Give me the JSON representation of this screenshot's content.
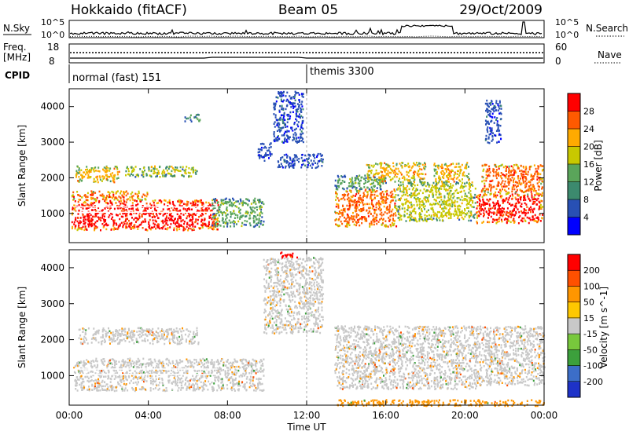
{
  "header": {
    "radar": "Hokkaido (fitACF)",
    "beam": "Beam 05",
    "date": "29/Oct/2009"
  },
  "panels_top": {
    "nsky_label": "N.Sky",
    "nsky_ticks": [
      "10^5",
      "10^0"
    ],
    "nsearch_label": "N.Search",
    "freq_label_1": "Freq.",
    "freq_label_2": "[MHz]",
    "freq_ticks": [
      "18",
      "8"
    ],
    "nave_label": "Nave",
    "nave_ticks": [
      "60",
      "0"
    ],
    "cpid_label": "CPID",
    "cpid_modes": [
      {
        "name": "normal (fast) 151",
        "start_hour": 0
      },
      {
        "name": "themis 3300",
        "start_hour": 12
      }
    ]
  },
  "chart_data": [
    {
      "type": "heatmap",
      "name": "Power",
      "xlabel": "",
      "ylabel": "Slant Range [km]",
      "xlim": [
        0,
        24
      ],
      "ylim": [
        180,
        4500
      ],
      "y_ticks": [
        "4000",
        "3000",
        "2000",
        "1000"
      ],
      "y_tick_values": [
        4000,
        3000,
        2000,
        1000
      ],
      "colorbar": {
        "label": "Power [dB]",
        "tick_labels": [
          "28",
          "24",
          "20",
          "16",
          "12",
          "8",
          "4"
        ],
        "colors": [
          "#0000ff",
          "#2850b4",
          "#3c8a6e",
          "#5aa55a",
          "#c8c800",
          "#ffaa00",
          "#ff5a00",
          "#ff0000"
        ]
      },
      "blobs": [
        {
          "t0": 0.1,
          "t1": 7.5,
          "r0": 550,
          "r1": 1400,
          "level": 7
        },
        {
          "t0": 0.1,
          "t1": 4.0,
          "r0": 1400,
          "r1": 1650,
          "level": 6
        },
        {
          "t0": 7.2,
          "t1": 9.8,
          "r0": 650,
          "r1": 1450,
          "level": 3
        },
        {
          "t0": 0.3,
          "t1": 2.5,
          "r0": 1900,
          "r1": 2350,
          "level": 5
        },
        {
          "t0": 2.8,
          "t1": 6.5,
          "r0": 2050,
          "r1": 2350,
          "level": 4
        },
        {
          "t0": 5.8,
          "t1": 6.6,
          "r0": 3600,
          "r1": 3800,
          "level": 3
        },
        {
          "t0": 9.5,
          "t1": 10.2,
          "r0": 2500,
          "r1": 3000,
          "level": 1
        },
        {
          "t0": 10.3,
          "t1": 11.8,
          "r0": 3000,
          "r1": 4450,
          "level": 1
        },
        {
          "t0": 10.5,
          "t1": 12.8,
          "r0": 2300,
          "r1": 2700,
          "level": 1
        },
        {
          "t0": 13.4,
          "t1": 16.5,
          "r0": 650,
          "r1": 1700,
          "level": 6
        },
        {
          "t0": 13.4,
          "t1": 16.0,
          "r0": 1700,
          "r1": 2100,
          "level": 3
        },
        {
          "t0": 15.0,
          "t1": 18.0,
          "r0": 1900,
          "r1": 2450,
          "level": 5
        },
        {
          "t0": 16.5,
          "t1": 20.5,
          "r0": 800,
          "r1": 1900,
          "level": 4
        },
        {
          "t0": 18.4,
          "t1": 20.2,
          "r0": 1900,
          "r1": 2450,
          "level": 5
        },
        {
          "t0": 20.5,
          "t1": 23.9,
          "r0": 750,
          "r1": 1550,
          "level": 7
        },
        {
          "t0": 20.8,
          "t1": 23.9,
          "r0": 1550,
          "r1": 2400,
          "level": 6
        },
        {
          "t0": 21.0,
          "t1": 21.8,
          "r0": 3000,
          "r1": 4200,
          "level": 1
        }
      ]
    },
    {
      "type": "heatmap",
      "name": "Velocity",
      "xlabel": "Time UT",
      "ylabel": "Slant Range [km]",
      "xlim": [
        0,
        24
      ],
      "ylim": [
        180,
        4500
      ],
      "x_ticks": [
        "00:00",
        "04:00",
        "08:00",
        "12:00",
        "16:00",
        "20:00",
        "00:00"
      ],
      "x_tick_values": [
        0,
        4,
        8,
        12,
        16,
        20,
        24
      ],
      "y_ticks": [
        "4000",
        "3000",
        "2000",
        "1000"
      ],
      "y_tick_values": [
        4000,
        3000,
        2000,
        1000
      ],
      "colorbar": {
        "label": "Velocity [m s^-1]",
        "tick_labels": [
          "200",
          "100",
          "50",
          "15",
          "-15",
          "-50",
          "-100",
          "-200"
        ],
        "colors": [
          "#1e32c8",
          "#3c6ec8",
          "#3ca03c",
          "#78c83c",
          "#c8c8c8",
          "#ffc800",
          "#ff9600",
          "#ff5000",
          "#ff0000"
        ]
      },
      "blobs": [
        {
          "t0": 0.2,
          "t1": 9.8,
          "r0": 600,
          "r1": 1500,
          "level": 4
        },
        {
          "t0": 0.4,
          "t1": 6.5,
          "r0": 1900,
          "r1": 2350,
          "level": 4
        },
        {
          "t0": 9.8,
          "t1": 12.8,
          "r0": 2200,
          "r1": 4300,
          "level": 4
        },
        {
          "t0": 13.4,
          "t1": 20.8,
          "r0": 650,
          "r1": 2400,
          "level": 4
        },
        {
          "t0": 20.8,
          "t1": 24.0,
          "r0": 750,
          "r1": 2400,
          "level": 4
        },
        {
          "t0": 13.5,
          "t1": 24.0,
          "r0": 180,
          "r1": 350,
          "level": 6
        },
        {
          "t0": 10.5,
          "t1": 11.5,
          "r0": 4300,
          "r1": 4450,
          "level": 8
        }
      ]
    }
  ]
}
